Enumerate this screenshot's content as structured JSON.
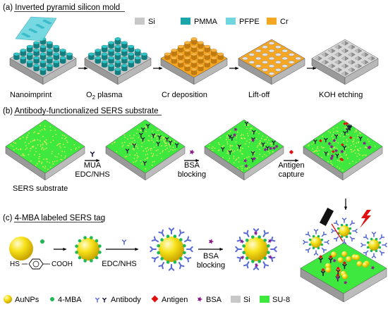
{
  "panel_a": {
    "title": "(a) Inverted pyramid silicon mold",
    "legend": [
      {
        "label": "Si",
        "color": "#c8c8c8"
      },
      {
        "label": "PMMA",
        "color": "#1aa5a8"
      },
      {
        "label": "PFPE",
        "color": "#6fd6e0"
      },
      {
        "label": "Cr",
        "color": "#f5a623"
      }
    ],
    "steps": [
      "Nanoimprint",
      "O",
      "2",
      "plasma",
      "Cr deposition",
      "Lift-off",
      "KOH etching"
    ]
  },
  "panel_b": {
    "title": "(b) Antibody-functionalized SERS substrate",
    "substrate_label": "SERS substrate",
    "step1_line1": "MUA",
    "step1_line2": "EDC/NHS",
    "step2_line1": "BSA",
    "step2_line2": "blocking",
    "step3_line1": "Antigen",
    "step3_line2": "capture"
  },
  "panel_c": {
    "title": "(c) 4-MBA labeled SERS tag",
    "thiol_label": "HS",
    "acid_label": "COOH",
    "step1": "EDC/NHS",
    "step2_line1": "BSA",
    "step2_line2": "blocking"
  },
  "bottom_legend": [
    {
      "label": "AuNPs",
      "color": "#f5d800"
    },
    {
      "label": "4-MBA",
      "color": "#1db954"
    },
    {
      "label": "Antibody",
      "color": "#5a6bd6"
    },
    {
      "label": "Antigen",
      "color": "#e01010"
    },
    {
      "label": "BSA",
      "color": "#8b1a8b"
    },
    {
      "label": "Si",
      "color": "#c8c8c8"
    },
    {
      "label": "SU-8",
      "color": "#3ee83e"
    }
  ],
  "colors": {
    "si": "#c8c8c8",
    "pmma": "#1aa5a8",
    "pfpe": "#6fd6e0",
    "cr": "#f5a623",
    "su8": "#3ee83e",
    "gold": "#f5d800",
    "mba": "#1db954",
    "antibody": "#5a6bd6",
    "antigen": "#e01010",
    "bsa": "#8b1a8b"
  }
}
